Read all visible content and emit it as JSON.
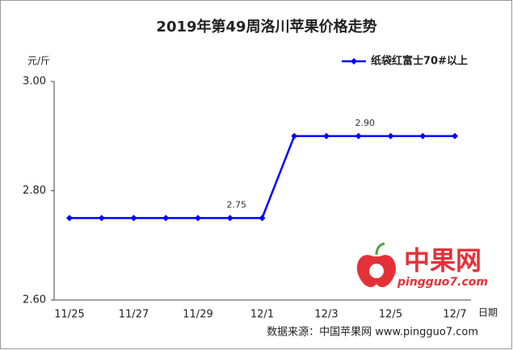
{
  "chart_data": {
    "type": "line",
    "title": "2019年第49周洛川苹果价格走势",
    "y_label": "元/斤",
    "x_label": "日期",
    "source": "数据来源：中国苹果网 www.pingguo7.com",
    "watermark": {
      "text": "中果网",
      "url": "pingguo7.com"
    },
    "categories": [
      "11/25",
      null,
      "11/27",
      null,
      "11/29",
      null,
      "12/1",
      null,
      "12/3",
      null,
      "12/5",
      null,
      "12/7"
    ],
    "series": [
      {
        "name": "纸袋红富士70#以上",
        "color": "#0000ff",
        "values": [
          2.75,
          2.75,
          2.75,
          2.75,
          2.75,
          2.75,
          2.75,
          2.9,
          2.9,
          2.9,
          2.9,
          2.9,
          2.9
        ],
        "value_labels": [
          null,
          null,
          null,
          null,
          null,
          "2.75",
          null,
          null,
          null,
          "2.90",
          null,
          null,
          null
        ]
      }
    ],
    "ylim": [
      2.6,
      3.0
    ],
    "yticks": [
      {
        "value": 2.6,
        "label": "2.60"
      },
      {
        "value": 2.8,
        "label": "2.80"
      },
      {
        "value": 3.0,
        "label": "3.00"
      }
    ],
    "grid": false,
    "legend": "top-right"
  }
}
